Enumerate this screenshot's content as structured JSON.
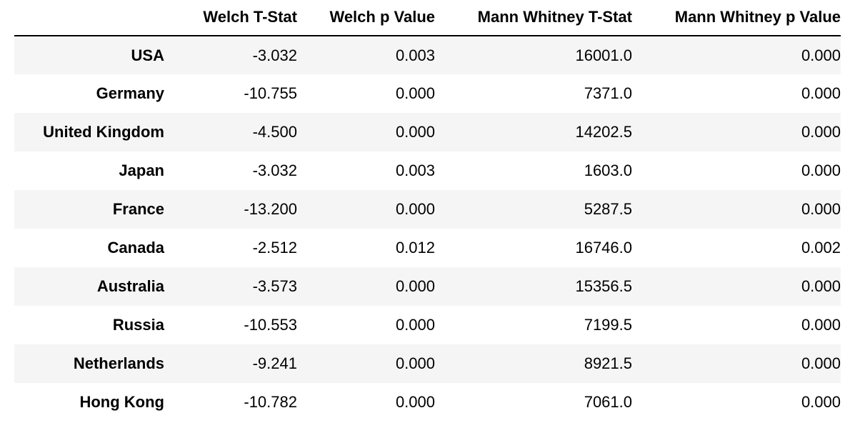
{
  "table": {
    "headers": [
      "",
      "Welch T-Stat",
      "Welch p Value",
      "Mann Whitney T-Stat",
      "Mann Whitney p Value"
    ],
    "rows": [
      {
        "label": "USA",
        "welch_t": "-3.032",
        "welch_p": "0.003",
        "mw_t": "16001.0",
        "mw_p": "0.000"
      },
      {
        "label": "Germany",
        "welch_t": "-10.755",
        "welch_p": "0.000",
        "mw_t": "7371.0",
        "mw_p": "0.000"
      },
      {
        "label": "United Kingdom",
        "welch_t": "-4.500",
        "welch_p": "0.000",
        "mw_t": "14202.5",
        "mw_p": "0.000"
      },
      {
        "label": "Japan",
        "welch_t": "-3.032",
        "welch_p": "0.003",
        "mw_t": "1603.0",
        "mw_p": "0.000"
      },
      {
        "label": "France",
        "welch_t": "-13.200",
        "welch_p": "0.000",
        "mw_t": "5287.5",
        "mw_p": "0.000"
      },
      {
        "label": "Canada",
        "welch_t": "-2.512",
        "welch_p": "0.012",
        "mw_t": "16746.0",
        "mw_p": "0.002"
      },
      {
        "label": "Australia",
        "welch_t": "-3.573",
        "welch_p": "0.000",
        "mw_t": "15356.5",
        "mw_p": "0.000"
      },
      {
        "label": "Russia",
        "welch_t": "-10.553",
        "welch_p": "0.000",
        "mw_t": "7199.5",
        "mw_p": "0.000"
      },
      {
        "label": "Netherlands",
        "welch_t": "-9.241",
        "welch_p": "0.000",
        "mw_t": "8921.5",
        "mw_p": "0.000"
      },
      {
        "label": "Hong Kong",
        "welch_t": "-10.782",
        "welch_p": "0.000",
        "mw_t": "7061.0",
        "mw_p": "0.000"
      }
    ]
  }
}
